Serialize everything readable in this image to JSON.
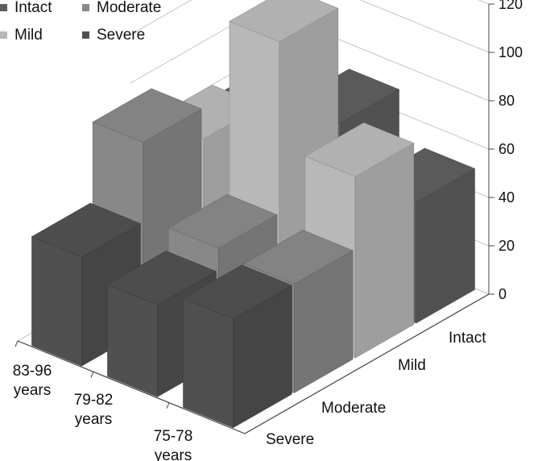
{
  "chart_data": {
    "type": "bar3d",
    "title": "",
    "legend_position": "top-left",
    "series": [
      {
        "name": "Intact",
        "color": "#5e5e5e",
        "values": [
          60,
          70,
          50
        ]
      },
      {
        "name": "Moderate",
        "color": "#888888",
        "values": [
          78,
          47,
          45
        ]
      },
      {
        "name": "Mild",
        "color": "#b8b8b8",
        "values": [
          65,
          118,
          75
        ]
      },
      {
        "name": "Severe",
        "color": "#505050",
        "values": [
          45,
          38,
          45
        ]
      }
    ],
    "categories": [
      {
        "lines": [
          "83-96",
          "years"
        ]
      },
      {
        "lines": [
          "79-82",
          "years"
        ]
      },
      {
        "lines": [
          "75-78",
          "years"
        ]
      }
    ],
    "depth_labels": [
      "Intact",
      "Mild",
      "Moderate",
      "Severe"
    ],
    "depth_order": [
      "Intact",
      "Mild",
      "Moderate",
      "Severe"
    ],
    "y_ticks": [
      0,
      20,
      40,
      60,
      80,
      100,
      120
    ],
    "ylim": [
      0,
      120
    ],
    "gridlines": true
  }
}
